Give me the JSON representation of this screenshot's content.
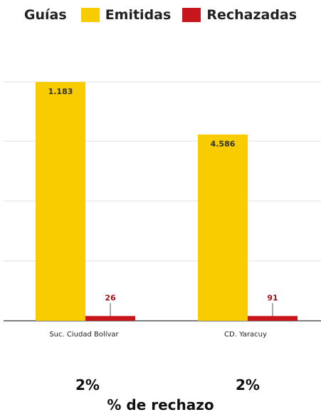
{
  "legend": {
    "title": "Guías",
    "items": [
      {
        "label": "Emitidas",
        "color": "#F9CC00"
      },
      {
        "label": "Rechazadas",
        "color": "#C8161D"
      }
    ]
  },
  "chart_data": {
    "type": "bar",
    "categories": [
      "Suc. Ciudad Bolívar",
      "CD. Yaracuy"
    ],
    "series": [
      {
        "name": "Emitidas",
        "labels": [
          "1.183",
          "4.586"
        ],
        "values": [
          1.0,
          0.78
        ],
        "color": "#F9CC00",
        "label_color": "#333333"
      },
      {
        "name": "Rechazadas",
        "labels": [
          "26",
          "91"
        ],
        "values": [
          0.02,
          0.02
        ],
        "color": "#C8161D",
        "label_color": "#A01018"
      }
    ],
    "grid": true,
    "legend_position": "top"
  },
  "percentages": [
    "2%",
    "2%"
  ],
  "footer": "% de rechazo"
}
